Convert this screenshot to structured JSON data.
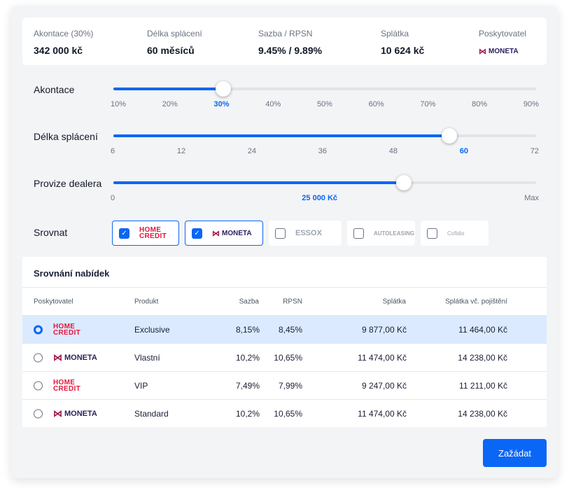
{
  "summary": [
    {
      "label": "Akontace (30%)",
      "value": "342 000 kč"
    },
    {
      "label": "Délka splácení",
      "value": "60 měsíců"
    },
    {
      "label": "Sazba / RPSN",
      "value": "9.45% / 9.89%"
    },
    {
      "label": "Splátka",
      "value": "10 624 kč"
    },
    {
      "label": "Poskytovatel",
      "value": "MONETA"
    }
  ],
  "sliders": [
    {
      "label": "Akontace",
      "ticks": [
        "10%",
        "20%",
        "30%",
        "40%",
        "50%",
        "60%",
        "70%",
        "80%",
        "90%"
      ],
      "active": 2,
      "fraction": 0.26
    },
    {
      "label": "Délka splácení",
      "ticks": [
        "6",
        "12",
        "24",
        "36",
        "48",
        "60",
        "72"
      ],
      "active": 5,
      "fraction": 0.795
    },
    {
      "label": "Provize dealera",
      "ticks": [
        "0",
        "25 000 Kč",
        "Max"
      ],
      "active": 1,
      "fraction": 0.687
    }
  ],
  "compare": {
    "label": "Srovnat",
    "providers": [
      {
        "name": "HOME CREDIT",
        "checked": true
      },
      {
        "name": "MONETA",
        "checked": true
      },
      {
        "name": "ESSOX",
        "checked": false
      },
      {
        "name": "AUTOLEASING",
        "checked": false
      },
      {
        "name": "Cofidis",
        "checked": false
      }
    ]
  },
  "table": {
    "title": "Srovnání nabídek",
    "headers": [
      "Poskytovatel",
      "Produkt",
      "Sazba",
      "RPSN",
      "Splátka",
      "Splátka vč. pojištění"
    ],
    "rows": [
      {
        "provider": "HOME CREDIT",
        "product": "Exclusive",
        "rate": "8,15%",
        "rpsn": "8,45%",
        "payment": "9 877,00 Kč",
        "payment_ins": "11 464,00 Kč",
        "selected": true
      },
      {
        "provider": "MONETA",
        "product": "Vlastní",
        "rate": "10,2%",
        "rpsn": "10,65%",
        "payment": "11 474,00 Kč",
        "payment_ins": "14 238,00 Kč",
        "selected": false
      },
      {
        "provider": "HOME CREDIT",
        "product": "VIP",
        "rate": "7,49%",
        "rpsn": "7,99%",
        "payment": "9 247,00 Kč",
        "payment_ins": "11 211,00 Kč",
        "selected": false
      },
      {
        "provider": "MONETA",
        "product": "Standard",
        "rate": "10,2%",
        "rpsn": "10,65%",
        "payment": "11 474,00 Kč",
        "payment_ins": "14 238,00 Kč",
        "selected": false
      }
    ]
  },
  "submit_label": "Zažádat",
  "colors": {
    "accent": "#0a66f5",
    "homecredit": "#e3173e",
    "moneta": "#2a1f5e"
  }
}
